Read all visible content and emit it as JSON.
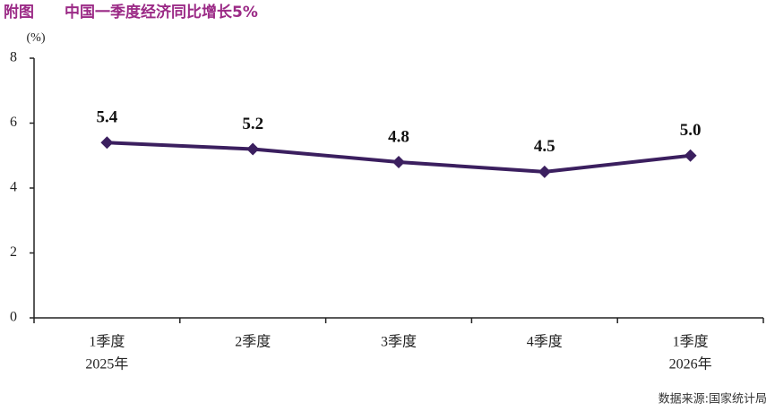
{
  "chart_data": {
    "type": "line",
    "label": "附图",
    "title": "中国一季度经济同比增长5%",
    "y_unit": "(%)",
    "categories": [
      "1季度",
      "2季度",
      "3季度",
      "4季度",
      "1季度"
    ],
    "category_years": [
      "2025年",
      null,
      null,
      null,
      "2026年"
    ],
    "values": [
      5.4,
      5.2,
      4.8,
      4.5,
      5.0
    ],
    "value_labels": [
      "5.4",
      "5.2",
      "4.8",
      "4.5",
      "5.0"
    ],
    "color": "#3b1f5f",
    "ylim": [
      0,
      8
    ],
    "yticks": [
      0,
      2,
      4,
      6,
      8
    ],
    "source": "数据来源:国家统计局"
  }
}
